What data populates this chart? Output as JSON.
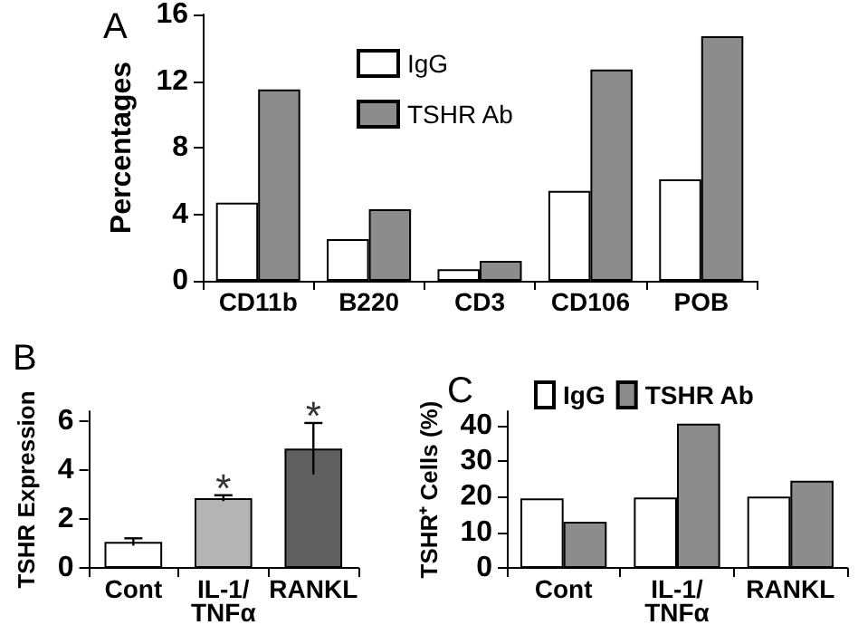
{
  "chart_data": [
    {
      "type": "bar",
      "title": "A",
      "ylabel": "Percentages",
      "categories": [
        "CD11b",
        "B220",
        "CD3",
        "CD106",
        "POB"
      ],
      "series": [
        {
          "name": "IgG",
          "color": "#ffffff",
          "values": [
            4.7,
            2.5,
            0.7,
            5.4,
            6.1
          ]
        },
        {
          "name": "TSHR Ab",
          "color": "#8c8c8c",
          "values": [
            11.5,
            4.3,
            1.2,
            12.7,
            14.7
          ]
        }
      ],
      "ylim": [
        0,
        16
      ],
      "yticks": [
        0,
        4,
        8,
        12,
        16
      ],
      "grid": false,
      "legend": "top left"
    },
    {
      "type": "bar",
      "title": "B",
      "ylabel": "TSHR Expression",
      "categories": [
        "Cont",
        "IL-1/\nTNFα",
        "RANKL"
      ],
      "values": [
        1.06,
        2.85,
        4.87
      ],
      "colors": [
        "#ffffff",
        "#b4b4b4",
        "#606060"
      ],
      "errors": [
        0.15,
        0.12,
        1.05
      ],
      "annotations": [
        {
          "text": "*",
          "x": "IL-1/\nTNFα",
          "y": 3.25
        },
        {
          "text": "*",
          "x": "RANKL",
          "y": 6.2
        }
      ],
      "ylim": [
        0,
        6.4
      ],
      "yticks": [
        0,
        2,
        4,
        6
      ],
      "grid": false
    },
    {
      "type": "bar",
      "title": "C",
      "ylabel": "TSHR⁺ Cells (%)",
      "categories": [
        "Cont",
        "IL-1/\nTNFα",
        "RANKL"
      ],
      "series": [
        {
          "name": "IgG",
          "color": "#ffffff",
          "values": [
            19.5,
            19.8,
            20
          ]
        },
        {
          "name": "TSHR Ab",
          "color": "#8c8c8c",
          "values": [
            13,
            40.5,
            24.5
          ]
        }
      ],
      "ylim": [
        0,
        44
      ],
      "yticks": [
        0,
        10,
        20,
        30,
        40
      ],
      "grid": false,
      "legend": "top"
    }
  ]
}
